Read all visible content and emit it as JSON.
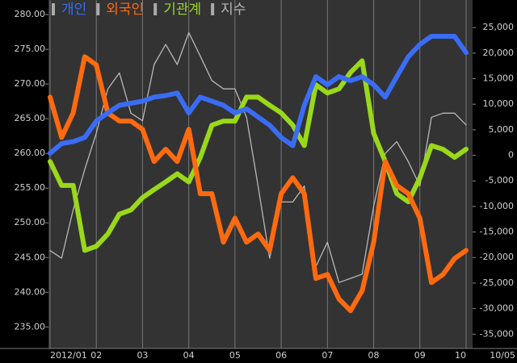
{
  "chart_data": {
    "type": "line",
    "categories": [
      "2012/01",
      null,
      null,
      null,
      "02",
      null,
      null,
      null,
      "03",
      null,
      null,
      null,
      "04",
      null,
      null,
      null,
      "05",
      null,
      null,
      null,
      "06",
      null,
      null,
      null,
      "07",
      null,
      null,
      null,
      "08",
      null,
      null,
      null,
      "09",
      null,
      null,
      null,
      "10"
    ],
    "x_end_label": "10/05",
    "series": [
      {
        "name": "개인",
        "color": "#3a6cf4",
        "axis": "y2",
        "width": 6,
        "values": [
          400,
          2300,
          2700,
          3500,
          6700,
          8300,
          9800,
          10200,
          10600,
          11400,
          11700,
          12200,
          8300,
          11400,
          10600,
          9800,
          8300,
          9100,
          7500,
          5900,
          3500,
          1900,
          9800,
          15400,
          13800,
          15400,
          14600,
          15400,
          13800,
          11400,
          15400,
          19300,
          21700,
          23300,
          23300,
          23300,
          20100
        ]
      },
      {
        "name": "외국인",
        "color": "#ff6a10",
        "axis": "y2",
        "width": 6,
        "values": [
          11400,
          3500,
          8300,
          19300,
          17700,
          8300,
          6700,
          6700,
          5100,
          -1200,
          1200,
          -1200,
          5100,
          -7500,
          -7500,
          -17000,
          -12300,
          -17000,
          -15400,
          -18600,
          -7500,
          -4400,
          -7500,
          -24100,
          -23300,
          -28100,
          -30400,
          -26500,
          -17000,
          -1200,
          -5900,
          -7500,
          -12300,
          -24900,
          -23300,
          -20200,
          -18600
        ]
      },
      {
        "name": "기관계",
        "color": "#99d81a",
        "axis": "y2",
        "width": 6,
        "values": [
          -1200,
          -5900,
          -5900,
          -18600,
          -17800,
          -15400,
          -11500,
          -10700,
          -8300,
          -6700,
          -5200,
          -3600,
          -5200,
          -400,
          5900,
          6700,
          6700,
          11400,
          11400,
          9800,
          8300,
          5900,
          1900,
          13800,
          12200,
          13000,
          16200,
          18500,
          4300,
          -1200,
          -7500,
          -9100,
          -4400,
          1900,
          1200,
          -400,
          1200
        ]
      },
      {
        "name": "지수",
        "color": "#b8b8b8",
        "axis": "y",
        "width": 1.3,
        "values": [
          246.0,
          244.9,
          251.9,
          257.7,
          262.9,
          269.3,
          271.6,
          265.8,
          264.7,
          272.8,
          275.7,
          272.8,
          277.4,
          274.0,
          270.5,
          269.3,
          269.3,
          265.2,
          255.3,
          244.9,
          253.0,
          253.0,
          255.3,
          243.7,
          247.2,
          241.4,
          242.0,
          242.6,
          252.4,
          260.0,
          261.7,
          258.8,
          255.3,
          265.2,
          265.8,
          265.8,
          264.1
        ]
      }
    ],
    "ylim": [
      231.9,
      282.1
    ],
    "yticks": [
      {
        "value": 235,
        "label": "235.00"
      },
      {
        "value": 240,
        "label": "240.00"
      },
      {
        "value": 245,
        "label": "245.00"
      },
      {
        "value": 250,
        "label": "250.00"
      },
      {
        "value": 255,
        "label": "255.00"
      },
      {
        "value": 260,
        "label": "260.00"
      },
      {
        "value": 265,
        "label": "265.00"
      },
      {
        "value": 270,
        "label": "270.00"
      },
      {
        "value": 275,
        "label": "275.00"
      },
      {
        "value": 280,
        "label": "280.00"
      }
    ],
    "y2lim": [
      -37800,
      30400
    ],
    "y2ticks": [
      {
        "value": -35000,
        "label": "-35,000"
      },
      {
        "value": -30000,
        "label": "-30,000"
      },
      {
        "value": -25000,
        "label": "-25,000"
      },
      {
        "value": -20000,
        "label": "-20,000"
      },
      {
        "value": -15000,
        "label": "-15,000"
      },
      {
        "value": -10000,
        "label": "-10,000"
      },
      {
        "value": -5000,
        "label": "-5,000"
      },
      0,
      {
        "value": 5000,
        "label": "5,000"
      },
      {
        "value": 10000,
        "label": "10,000"
      },
      {
        "value": 15000,
        "label": "15,000"
      },
      {
        "value": 20000,
        "label": "20,000"
      },
      {
        "value": 25000,
        "label": "25,000"
      }
    ],
    "grid": true
  }
}
